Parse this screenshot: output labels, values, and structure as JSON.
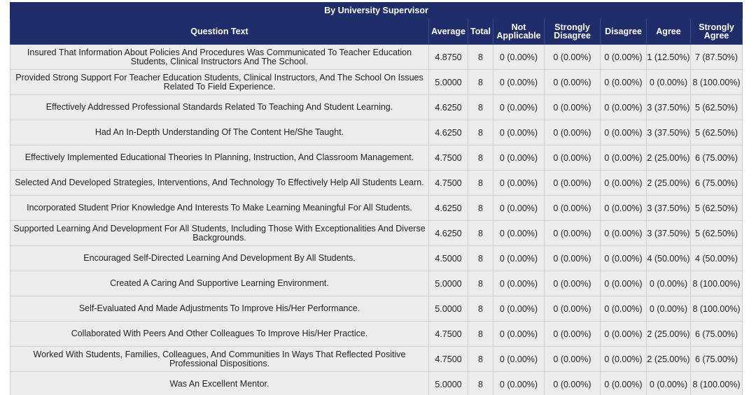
{
  "table_title": "By University Supervisor",
  "columns": [
    "Question Text",
    "Average",
    "Total",
    "Not Applicable",
    "Strongly Disagree",
    "Disagree",
    "Agree",
    "Strongly Agree"
  ],
  "rows": [
    {
      "question": "Insured That Information About Policies And Procedures Was Communicated To Teacher Education Students, Clinical Instructors And The School.",
      "average": "4.8750",
      "total": "8",
      "not_applicable": "0 (0.00%)",
      "strongly_disagree": "0 (0.00%)",
      "disagree": "0 (0.00%)",
      "agree": "1 (12.50%)",
      "strongly_agree": "7 (87.50%)"
    },
    {
      "question": "Provided Strong Support For Teacher Education Students, Clinical Instructors, And The School On Issues Related To Field Experience.",
      "average": "5.0000",
      "total": "8",
      "not_applicable": "0 (0.00%)",
      "strongly_disagree": "0 (0.00%)",
      "disagree": "0 (0.00%)",
      "agree": "0 (0.00%)",
      "strongly_agree": "8 (100.00%)"
    },
    {
      "question": "Effectively Addressed Professional Standards Related To Teaching And Student Learning.",
      "average": "4.6250",
      "total": "8",
      "not_applicable": "0 (0.00%)",
      "strongly_disagree": "0 (0.00%)",
      "disagree": "0 (0.00%)",
      "agree": "3 (37.50%)",
      "strongly_agree": "5 (62.50%)"
    },
    {
      "question": "Had An In-Depth Understanding Of The Content He/She Taught.",
      "average": "4.6250",
      "total": "8",
      "not_applicable": "0 (0.00%)",
      "strongly_disagree": "0 (0.00%)",
      "disagree": "0 (0.00%)",
      "agree": "3 (37.50%)",
      "strongly_agree": "5 (62.50%)"
    },
    {
      "question": "Effectively Implemented Educational Theories In Planning, Instruction, And Classroom Management.",
      "average": "4.7500",
      "total": "8",
      "not_applicable": "0 (0.00%)",
      "strongly_disagree": "0 (0.00%)",
      "disagree": "0 (0.00%)",
      "agree": "2 (25.00%)",
      "strongly_agree": "6 (75.00%)"
    },
    {
      "question": "Selected And Developed Strategies, Interventions, And Technology To Effectively Help All Students Learn.",
      "average": "4.7500",
      "total": "8",
      "not_applicable": "0 (0.00%)",
      "strongly_disagree": "0 (0.00%)",
      "disagree": "0 (0.00%)",
      "agree": "2 (25.00%)",
      "strongly_agree": "6 (75.00%)"
    },
    {
      "question": "Incorporated Student Prior Knowledge And Interests To Make Learning Meaningful For All Students.",
      "average": "4.6250",
      "total": "8",
      "not_applicable": "0 (0.00%)",
      "strongly_disagree": "0 (0.00%)",
      "disagree": "0 (0.00%)",
      "agree": "3 (37.50%)",
      "strongly_agree": "5 (62.50%)"
    },
    {
      "question": "Supported Learning And Development For All Students, Including Those With Exceptionalities And Diverse Backgrounds.",
      "average": "4.6250",
      "total": "8",
      "not_applicable": "0 (0.00%)",
      "strongly_disagree": "0 (0.00%)",
      "disagree": "0 (0.00%)",
      "agree": "3 (37.50%)",
      "strongly_agree": "5 (62.50%)"
    },
    {
      "question": "Encouraged Self-Directed Learning And Development By All Students.",
      "average": "4.5000",
      "total": "8",
      "not_applicable": "0 (0.00%)",
      "strongly_disagree": "0 (0.00%)",
      "disagree": "0 (0.00%)",
      "agree": "4 (50.00%)",
      "strongly_agree": "4 (50.00%)"
    },
    {
      "question": "Created A Caring And Supportive Learning Environment.",
      "average": "5.0000",
      "total": "8",
      "not_applicable": "0 (0.00%)",
      "strongly_disagree": "0 (0.00%)",
      "disagree": "0 (0.00%)",
      "agree": "0 (0.00%)",
      "strongly_agree": "8 (100.00%)"
    },
    {
      "question": "Self-Evaluated And Made Adjustments To Improve His/Her Performance.",
      "average": "5.0000",
      "total": "8",
      "not_applicable": "0 (0.00%)",
      "strongly_disagree": "0 (0.00%)",
      "disagree": "0 (0.00%)",
      "agree": "0 (0.00%)",
      "strongly_agree": "8 (100.00%)"
    },
    {
      "question": "Collaborated With Peers And Other Colleagues To Improve His/Her Practice.",
      "average": "4.7500",
      "total": "8",
      "not_applicable": "0 (0.00%)",
      "strongly_disagree": "0 (0.00%)",
      "disagree": "0 (0.00%)",
      "agree": "2 (25.00%)",
      "strongly_agree": "6 (75.00%)"
    },
    {
      "question": "Worked With Students, Families, Colleagues, And Communities In Ways That Reflected Positive Professional Dispositions.",
      "average": "4.7500",
      "total": "8",
      "not_applicable": "0 (0.00%)",
      "strongly_disagree": "0 (0.00%)",
      "disagree": "0 (0.00%)",
      "agree": "2 (25.00%)",
      "strongly_agree": "6 (75.00%)"
    },
    {
      "question": "Was An Excellent Mentor.",
      "average": "5.0000",
      "total": "8",
      "not_applicable": "0 (0.00%)",
      "strongly_disagree": "0 (0.00%)",
      "disagree": "0 (0.00%)",
      "agree": "0 (0.00%)",
      "strongly_agree": "8 (100.00%)"
    }
  ]
}
